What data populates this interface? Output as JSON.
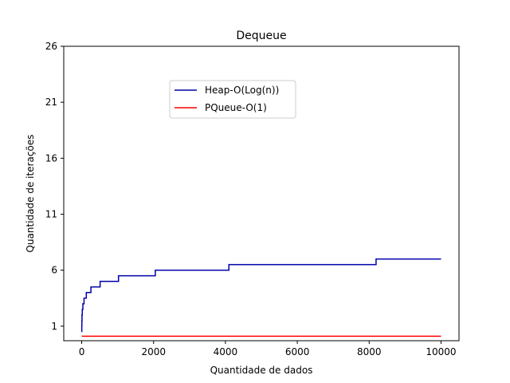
{
  "chart_data": {
    "type": "line",
    "title": "Dequeue",
    "xlabel": "Quantidade de dados",
    "ylabel": "Quantidade de iterações",
    "xlim": [
      -500,
      10500
    ],
    "ylim": [
      -0.3,
      26
    ],
    "xticks": [
      0,
      2000,
      4000,
      6000,
      8000,
      10000
    ],
    "xtick_labels": [
      "0",
      "2000",
      "4000",
      "6000",
      "8000",
      "10000"
    ],
    "yticks": [
      1,
      6,
      11,
      16,
      21,
      26
    ],
    "ytick_labels": [
      "1",
      "6",
      "11",
      "16",
      "21",
      "26"
    ],
    "grid": false,
    "legend_placement": "upper-center-left",
    "series": [
      {
        "name": "Heap-O(Log(n))",
        "color": "#0000aa",
        "step": true,
        "x": [
          1,
          2,
          4,
          8,
          16,
          32,
          64,
          128,
          256,
          512,
          1024,
          2048,
          4096,
          8192,
          10000
        ],
        "y": [
          0.5,
          1,
          1.5,
          2,
          2.5,
          3,
          3.5,
          4,
          4.5,
          5,
          5.5,
          6,
          6.5,
          7,
          7
        ]
      },
      {
        "name": "PQueue-O(1)",
        "color": "#ff0000",
        "step": false,
        "x": [
          1,
          10000
        ],
        "y": [
          0.1,
          0.1
        ]
      }
    ]
  }
}
